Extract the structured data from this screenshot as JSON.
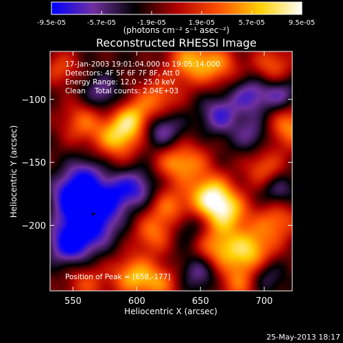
{
  "chart_data": {
    "type": "heatmap",
    "title": "Reconstructed RHESSI Image",
    "xlabel": "Heliocentric X (arcsec)",
    "ylabel": "Heliocentric Y (arcsec)",
    "xlim": [
      532,
      722
    ],
    "ylim": [
      -252,
      -62
    ],
    "x_ticks": [
      550,
      600,
      650,
      700
    ],
    "y_ticks": [
      -100,
      -150,
      -200
    ],
    "colorbar": {
      "range": [
        -9.5e-05,
        9.5e-05
      ],
      "tick_labels": [
        "-9.5e-05",
        "-5.7e-05",
        "-1.9e-05",
        "1.9e-05",
        "5.7e-05",
        "9.5e-05"
      ],
      "tick_values": [
        -9.5e-05,
        -5.7e-05,
        -1.9e-05,
        1.9e-05,
        5.7e-05,
        9.5e-05
      ],
      "unit_label": "(photons cm⁻² s⁻¹ asec⁻²)",
      "colors": [
        "#0000ff",
        "#7030a0",
        "#000000",
        "#b00000",
        "#ff5000",
        "#ffd000",
        "#ffffff"
      ]
    },
    "info_lines": [
      "17-Jan-2003 19:01:04.000 to 19:05:14.000",
      "Detectors: 4F 5F 6F 7F 8F, Att 0",
      "Energy Range: 12.0 - 25.0 keV",
      "Clean    Total counts: 2.04E+03"
    ],
    "peak_text": "Position of Peak = [658,-177]",
    "peak_position": [
      658,
      -177
    ],
    "marker_position": [
      566,
      -191
    ],
    "blobs": [
      {
        "x": 557,
        "y": -118,
        "a": 0.55,
        "s": 12
      },
      {
        "x": 585,
        "y": -130,
        "a": 0.85,
        "s": 12
      },
      {
        "x": 597,
        "y": -115,
        "a": 0.7,
        "s": 10
      },
      {
        "x": 616,
        "y": -100,
        "a": 0.6,
        "s": 12
      },
      {
        "x": 642,
        "y": -70,
        "a": 0.75,
        "s": 13
      },
      {
        "x": 665,
        "y": -73,
        "a": 0.55,
        "s": 11
      },
      {
        "x": 706,
        "y": -74,
        "a": 0.55,
        "s": 12
      },
      {
        "x": 720,
        "y": -122,
        "a": 0.7,
        "s": 12
      },
      {
        "x": 700,
        "y": -155,
        "a": 0.55,
        "s": 11
      },
      {
        "x": 641,
        "y": -150,
        "a": 0.55,
        "s": 12
      },
      {
        "x": 658,
        "y": -177,
        "a": 1.0,
        "s": 12
      },
      {
        "x": 671,
        "y": -190,
        "a": 0.75,
        "s": 12
      },
      {
        "x": 626,
        "y": -186,
        "a": 0.6,
        "s": 12
      },
      {
        "x": 612,
        "y": -207,
        "a": 0.55,
        "s": 11
      },
      {
        "x": 597,
        "y": -240,
        "a": 0.75,
        "s": 12
      },
      {
        "x": 618,
        "y": -246,
        "a": 0.55,
        "s": 11
      },
      {
        "x": 662,
        "y": -219,
        "a": 0.7,
        "s": 12
      },
      {
        "x": 689,
        "y": -220,
        "a": 0.85,
        "s": 13
      },
      {
        "x": 710,
        "y": -196,
        "a": 0.6,
        "s": 12
      },
      {
        "x": 680,
        "y": -246,
        "a": 0.55,
        "s": 12
      },
      {
        "x": 560,
        "y": -246,
        "a": 0.45,
        "s": 12
      },
      {
        "x": 540,
        "y": -75,
        "a": 0.45,
        "s": 10
      },
      {
        "x": 626,
        "y": -150,
        "a": 0.4,
        "s": 10
      },
      {
        "x": 563,
        "y": -195,
        "a": -0.9,
        "s": 15
      },
      {
        "x": 550,
        "y": -175,
        "a": -0.75,
        "s": 12
      },
      {
        "x": 547,
        "y": -215,
        "a": -0.7,
        "s": 12
      },
      {
        "x": 580,
        "y": -175,
        "a": -0.5,
        "s": 11
      },
      {
        "x": 600,
        "y": -170,
        "a": -0.55,
        "s": 11
      },
      {
        "x": 620,
        "y": -123,
        "a": -0.55,
        "s": 11
      },
      {
        "x": 665,
        "y": -112,
        "a": -0.55,
        "s": 11
      },
      {
        "x": 690,
        "y": -96,
        "a": -0.55,
        "s": 11
      },
      {
        "x": 713,
        "y": -95,
        "a": -0.5,
        "s": 10
      },
      {
        "x": 560,
        "y": -158,
        "a": -0.4,
        "s": 10
      },
      {
        "x": 650,
        "y": -236,
        "a": -0.5,
        "s": 11
      },
      {
        "x": 710,
        "y": -172,
        "a": -0.45,
        "s": 10
      },
      {
        "x": 572,
        "y": -95,
        "a": -0.45,
        "s": 10
      },
      {
        "x": 640,
        "y": -200,
        "a": -0.35,
        "s": 10
      },
      {
        "x": 700,
        "y": -240,
        "a": -0.45,
        "s": 10
      },
      {
        "x": 690,
        "y": -128,
        "a": -0.4,
        "s": 10
      }
    ]
  },
  "footer": {
    "timestamp": "25-May-2013 18:17"
  }
}
